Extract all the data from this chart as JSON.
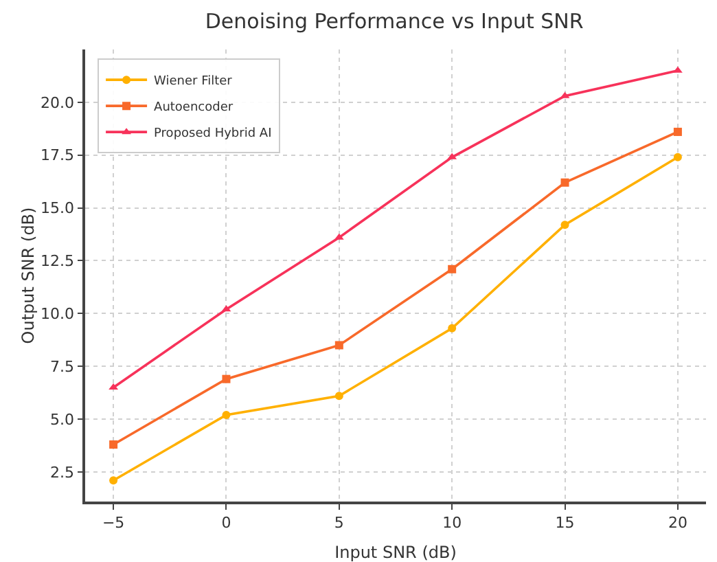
{
  "chart_data": {
    "type": "line",
    "title": "Denoising Performance vs Input SNR",
    "xlabel": "Input SNR (dB)",
    "ylabel": "Output SNR (dB)",
    "x": [
      -5,
      0,
      5,
      10,
      15,
      20
    ],
    "series": [
      {
        "name": "Wiener Filter",
        "color": "#ffb000",
        "marker": "circle",
        "values": [
          2.1,
          5.2,
          6.1,
          9.3,
          14.2,
          17.4
        ]
      },
      {
        "name": "Autoencoder",
        "color": "#f8692a",
        "marker": "square",
        "values": [
          3.8,
          6.9,
          8.5,
          12.1,
          16.2,
          18.6
        ]
      },
      {
        "name": "Proposed Hybrid AI",
        "color": "#f7325a",
        "marker": "triangle",
        "values": [
          6.5,
          10.2,
          13.6,
          17.4,
          20.3,
          21.5
        ]
      }
    ],
    "xlim": [
      -6.25,
      21.25
    ],
    "ylim": [
      1.1,
      22.5
    ],
    "xticks": [
      {
        "value": -5,
        "label": "−5"
      },
      0,
      5,
      10,
      15,
      20
    ],
    "yticks": [
      {
        "value": 2.5,
        "label": "2.5"
      },
      {
        "value": 5,
        "label": "5.0"
      },
      {
        "value": 7.5,
        "label": "7.5"
      },
      {
        "value": 10,
        "label": "10.0"
      },
      {
        "value": 12.5,
        "label": "12.5"
      },
      {
        "value": 15,
        "label": "15.0"
      },
      {
        "value": 17.5,
        "label": "17.5"
      },
      {
        "value": 20,
        "label": "20.0"
      }
    ],
    "grid": true,
    "legend": "top left",
    "line_style": "solid"
  }
}
